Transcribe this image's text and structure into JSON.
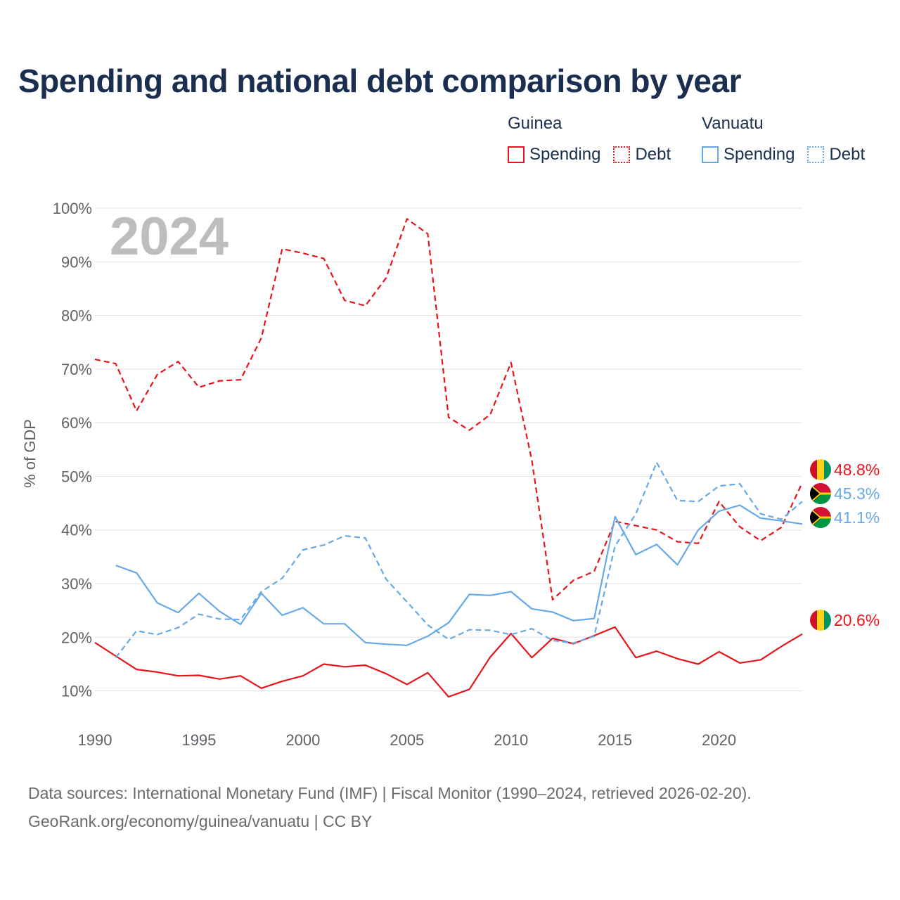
{
  "title": "Spending and national debt comparison by year",
  "legend": {
    "groups": [
      {
        "country": "Guinea",
        "spending_label": "Spending",
        "debt_label": "Debt"
      },
      {
        "country": "Vanuatu",
        "spending_label": "Spending",
        "debt_label": "Debt"
      }
    ]
  },
  "colors": {
    "guinea": "#e8141b",
    "vanuatu": "#66a9e6",
    "year_watermark": "#bdbdbd",
    "title": "#1a2e4f"
  },
  "chart_data": {
    "type": "line",
    "year_watermark": "2024",
    "ylabel": "% of GDP",
    "xlim": [
      1990,
      2024
    ],
    "ylim": [
      3,
      100
    ],
    "x_ticks": [
      1990,
      1995,
      2000,
      2005,
      2010,
      2015,
      2020
    ],
    "y_ticks": [
      10,
      20,
      30,
      40,
      50,
      60,
      70,
      80,
      90,
      100
    ],
    "y_tick_labels": [
      "10%",
      "20%",
      "30%",
      "40%",
      "50%",
      "60%",
      "70%",
      "80%",
      "90%",
      "100%"
    ],
    "series": [
      {
        "name": "Guinea Spending",
        "country": "Guinea",
        "kind": "spending",
        "color": "#e8141b",
        "dashed": false,
        "start_year": 1990,
        "values": [
          19.0,
          16.5,
          14.0,
          13.5,
          12.8,
          12.9,
          12.2,
          12.8,
          10.5,
          11.8,
          12.8,
          15.0,
          14.5,
          14.8,
          13.2,
          11.2,
          13.4,
          8.9,
          10.3,
          16.3,
          20.7,
          16.2,
          19.8,
          18.8,
          20.3,
          21.9,
          16.2,
          17.4,
          16.0,
          15.0,
          17.3,
          15.2,
          15.8,
          18.3,
          20.6
        ],
        "end_label": "20.6%"
      },
      {
        "name": "Guinea Debt",
        "country": "Guinea",
        "kind": "debt",
        "color": "#e8141b",
        "dashed": true,
        "start_year": 1990,
        "values": [
          71.8,
          71.0,
          62.2,
          69.0,
          71.4,
          66.6,
          67.8,
          68.0,
          75.8,
          92.4,
          91.6,
          90.6,
          82.8,
          81.8,
          87.0,
          98.0,
          95.2,
          61.0,
          58.6,
          61.5,
          71.2,
          53.0,
          27.0,
          30.6,
          32.3,
          41.6,
          40.8,
          40.0,
          37.8,
          37.5,
          45.3,
          40.6,
          38.0,
          40.5,
          48.8
        ],
        "end_label": "48.8%"
      },
      {
        "name": "Vanuatu Spending",
        "country": "Vanuatu",
        "kind": "spending",
        "color": "#66a9e6",
        "dashed": false,
        "start_year": 1991,
        "values": [
          33.4,
          32.0,
          26.4,
          24.6,
          28.2,
          24.8,
          22.4,
          28.2,
          24.1,
          25.5,
          22.5,
          22.5,
          19.0,
          18.7,
          18.5,
          20.2,
          22.7,
          28.0,
          27.8,
          28.5,
          25.3,
          24.7,
          23.1,
          23.5,
          42.5,
          35.4,
          37.3,
          33.5,
          40.0,
          43.5,
          44.6,
          42.2,
          41.7,
          41.1
        ],
        "end_label": "41.1%"
      },
      {
        "name": "Vanuatu Debt",
        "country": "Vanuatu",
        "kind": "debt",
        "color": "#66a9e6",
        "dashed": true,
        "start_year": 1991,
        "values": [
          16.2,
          21.2,
          20.5,
          21.8,
          24.3,
          23.4,
          23.3,
          28.5,
          31.0,
          36.3,
          37.2,
          38.9,
          38.5,
          30.8,
          26.6,
          22.3,
          19.6,
          21.4,
          21.3,
          20.5,
          21.6,
          19.4,
          18.9,
          20.2,
          37.0,
          43.0,
          52.6,
          45.5,
          45.3,
          48.2,
          48.6,
          43.0,
          42.0,
          45.3
        ],
        "end_label": "45.3%"
      }
    ]
  },
  "footer": {
    "line1": "Data sources: International Monetary Fund (IMF) | Fiscal Monitor (1990–2024, retrieved 2026-02-20).",
    "line2": "GeoRank.org/economy/guinea/vanuatu | CC BY"
  }
}
